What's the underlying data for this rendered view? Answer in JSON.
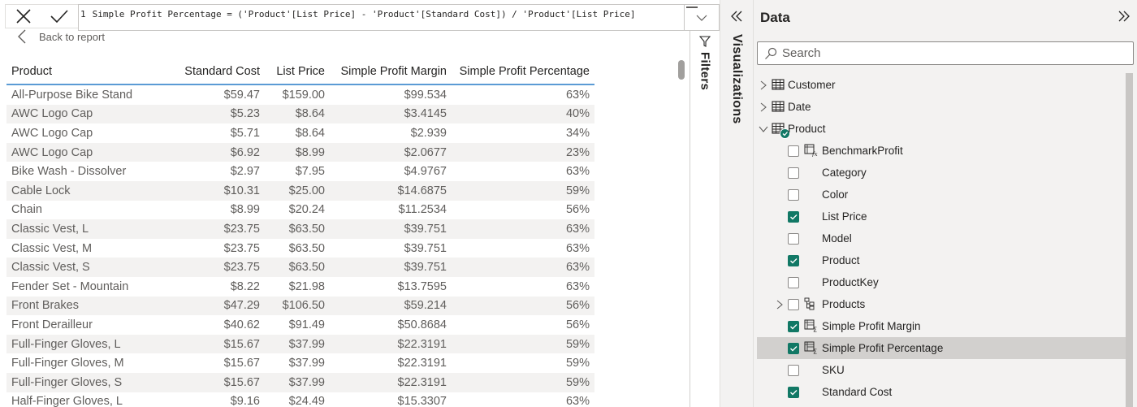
{
  "formula_bar": {
    "cancel_icon": "close-icon",
    "commit_icon": "checkmark-icon",
    "line_number": "1",
    "formula": "Simple Profit Percentage = ('Product'[List Price] - 'Product'[Standard Cost]) / 'Product'[List Price]",
    "expand_icon": "chevron-down-icon"
  },
  "back_link": {
    "label": "Back to report",
    "icon": "chevron-left-icon"
  },
  "table": {
    "columns": [
      "Product",
      "Standard Cost",
      "List Price",
      "Simple Profit Margin",
      "Simple Profit Percentage"
    ],
    "rows": [
      [
        "All-Purpose Bike Stand",
        "$59.47",
        "$159.00",
        "$99.534",
        "63%"
      ],
      [
        "AWC Logo Cap",
        "$5.23",
        "$8.64",
        "$3.4145",
        "40%"
      ],
      [
        "AWC Logo Cap",
        "$5.71",
        "$8.64",
        "$2.939",
        "34%"
      ],
      [
        "AWC Logo Cap",
        "$6.92",
        "$8.99",
        "$2.0677",
        "23%"
      ],
      [
        "Bike Wash - Dissolver",
        "$2.97",
        "$7.95",
        "$4.9767",
        "63%"
      ],
      [
        "Cable Lock",
        "$10.31",
        "$25.00",
        "$14.6875",
        "59%"
      ],
      [
        "Chain",
        "$8.99",
        "$20.24",
        "$11.2534",
        "56%"
      ],
      [
        "Classic Vest, L",
        "$23.75",
        "$63.50",
        "$39.751",
        "63%"
      ],
      [
        "Classic Vest, M",
        "$23.75",
        "$63.50",
        "$39.751",
        "63%"
      ],
      [
        "Classic Vest, S",
        "$23.75",
        "$63.50",
        "$39.751",
        "63%"
      ],
      [
        "Fender Set - Mountain",
        "$8.22",
        "$21.98",
        "$13.7595",
        "63%"
      ],
      [
        "Front Brakes",
        "$47.29",
        "$106.50",
        "$59.214",
        "56%"
      ],
      [
        "Front Derailleur",
        "$40.62",
        "$91.49",
        "$50.8684",
        "56%"
      ],
      [
        "Full-Finger Gloves, L",
        "$15.67",
        "$37.99",
        "$22.3191",
        "59%"
      ],
      [
        "Full-Finger Gloves, M",
        "$15.67",
        "$37.99",
        "$22.3191",
        "59%"
      ],
      [
        "Full-Finger Gloves, S",
        "$15.67",
        "$37.99",
        "$22.3191",
        "59%"
      ],
      [
        "Half-Finger Gloves, L",
        "$9.16",
        "$24.49",
        "$15.3307",
        "63%"
      ]
    ]
  },
  "filters_pane": {
    "label": "Filters",
    "icon": "filter-icon"
  },
  "visualizations_pane": {
    "label": "Visualizations",
    "collapse_icon": "double-chevron-left-icon"
  },
  "data_pane": {
    "title": "Data",
    "collapse_icon": "double-chevron-right-icon",
    "search": {
      "placeholder": "Search",
      "value": ""
    },
    "tables": [
      {
        "name": "Customer",
        "expanded": false
      },
      {
        "name": "Date",
        "expanded": false
      },
      {
        "name": "Product",
        "expanded": true,
        "has_selection_badge": true
      }
    ],
    "product_fields": [
      {
        "name": "BenchmarkProfit",
        "checked": false,
        "icon": "calculated-column-icon"
      },
      {
        "name": "Category",
        "checked": false,
        "icon": ""
      },
      {
        "name": "Color",
        "checked": false,
        "icon": ""
      },
      {
        "name": "List Price",
        "checked": true,
        "icon": ""
      },
      {
        "name": "Model",
        "checked": false,
        "icon": ""
      },
      {
        "name": "Product",
        "checked": true,
        "icon": ""
      },
      {
        "name": "ProductKey",
        "checked": false,
        "icon": ""
      },
      {
        "name": "Products",
        "checked": false,
        "icon": "hierarchy-icon",
        "expandable": true
      },
      {
        "name": "Simple Profit Margin",
        "checked": true,
        "icon": "measure-column-icon"
      },
      {
        "name": "Simple Profit Percentage",
        "checked": true,
        "icon": "measure-column-icon",
        "selected": true
      },
      {
        "name": "SKU",
        "checked": false,
        "icon": ""
      },
      {
        "name": "Standard Cost",
        "checked": true,
        "icon": ""
      }
    ]
  },
  "colors": {
    "accent_check": "#117865",
    "header_underline": "#5b9bd5",
    "alt_row": "#f3f2f1",
    "pane_bg": "#f3f2f1",
    "selected_row": "#d2d0ce"
  }
}
